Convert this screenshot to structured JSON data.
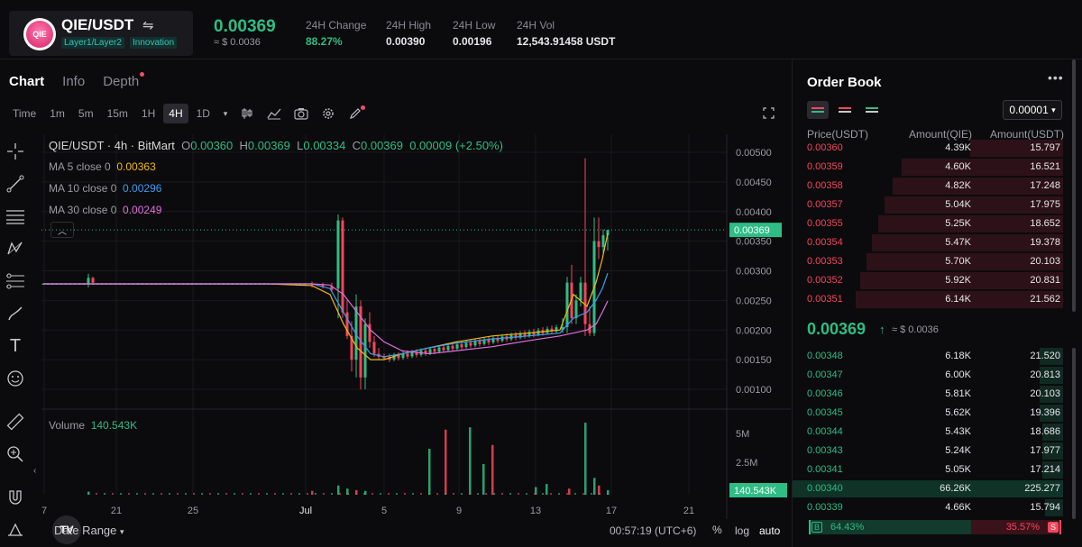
{
  "header": {
    "pair": "QIE/USDT",
    "logo_text": "QIE",
    "tags": [
      "Layer1/Layer2",
      "Innovation"
    ],
    "last_price": "0.00369",
    "last_price_usd": "≈ $ 0.0036",
    "stats": [
      {
        "label": "24H Change",
        "value": "88.27%"
      },
      {
        "label": "24H High",
        "value": "0.00390"
      },
      {
        "label": "24H Low",
        "value": "0.00196"
      },
      {
        "label": "24H Vol",
        "value": "12,543.91458 USDT"
      }
    ]
  },
  "chart_panel": {
    "tabs": [
      "Chart",
      "Info",
      "Depth"
    ],
    "intervals": [
      "Time",
      "1m",
      "5m",
      "15m",
      "1H",
      "4H",
      "1D"
    ],
    "active_interval": "4H",
    "legend": {
      "title": "QIE/USDT · 4h · BitMart",
      "o_label": "O",
      "o": "0.00360",
      "h_label": "H",
      "h": "0.00369",
      "l_label": "L",
      "l": "0.00334",
      "c_label": "C",
      "c": "0.00369",
      "change": "0.00009 (+2.50%)",
      "ma5_label": "MA 5 close 0",
      "ma5": "0.00363",
      "ma10_label": "MA 10 close 0",
      "ma10": "0.00296",
      "ma30_label": "MA 30 close 0",
      "ma30": "0.00249",
      "volume_label": "Volume",
      "volume": "140.543K"
    },
    "bottom": {
      "date_range": "Date Range",
      "clock": "00:57:19 (UTC+6)",
      "pct": "%",
      "log": "log",
      "auto": "auto"
    }
  },
  "chart_data": {
    "type": "line",
    "title": "QIE/USDT · 4h · BitMart",
    "x_tick_labels": [
      "7",
      "21",
      "25",
      "Jul",
      "5",
      "9",
      "13",
      "17",
      "21"
    ],
    "y_tick_labels": [
      "0.00500",
      "0.00450",
      "0.00400",
      "0.00350",
      "0.00300",
      "0.00250",
      "0.00200",
      "0.00150",
      "0.00100"
    ],
    "ylim": [
      0.001,
      0.005
    ],
    "volume_tick_labels": [
      "5M",
      "2.5M"
    ],
    "last_price_label": "0.00369",
    "last_volume_label": "140.543K",
    "colors": {
      "up": "#2ebd85",
      "down": "#f6465d",
      "ma5": "#f0b90b",
      "ma10": "#3d9cf0",
      "ma30": "#e26de0"
    },
    "series": [
      {
        "name": "MA 5 close 0",
        "values": [
          0.00278,
          0.00278,
          0.00278,
          0.00278,
          0.00278,
          0.00278,
          0.00275,
          0.0026,
          0.0021,
          0.0017,
          0.0015,
          0.0015,
          0.0016,
          0.0017,
          0.0018,
          0.0019,
          0.00195,
          0.002,
          0.0026,
          0.0024,
          0.0028,
          0.0032,
          0.00363
        ]
      },
      {
        "name": "MA 10 close 0",
        "values": [
          0.00278,
          0.00278,
          0.00278,
          0.00278,
          0.00278,
          0.00278,
          0.00278,
          0.0027,
          0.0023,
          0.0019,
          0.0016,
          0.00155,
          0.0016,
          0.0017,
          0.00178,
          0.00185,
          0.0019,
          0.00195,
          0.0022,
          0.0023,
          0.0025,
          0.0027,
          0.00296
        ]
      },
      {
        "name": "MA 30 close 0",
        "values": [
          0.00278,
          0.00278,
          0.00278,
          0.00278,
          0.00278,
          0.00278,
          0.00278,
          0.00276,
          0.0026,
          0.0023,
          0.002,
          0.0018,
          0.00165,
          0.0016,
          0.00165,
          0.00172,
          0.00182,
          0.0019,
          0.00195,
          0.002,
          0.0021,
          0.0023,
          0.00249
        ]
      }
    ]
  },
  "orderbook": {
    "title": "Order Book",
    "precision": "0.00001",
    "headers": [
      "Price(USDT)",
      "Amount(QIE)",
      "Amount(USDT)"
    ],
    "asks": [
      {
        "price": "0.00360",
        "amount": "4.39K",
        "total": "15.797",
        "depth": 0.45
      },
      {
        "price": "0.00359",
        "amount": "4.60K",
        "total": "16.521",
        "depth": 0.78
      },
      {
        "price": "0.00358",
        "amount": "4.82K",
        "total": "17.248",
        "depth": 0.82
      },
      {
        "price": "0.00357",
        "amount": "5.04K",
        "total": "17.975",
        "depth": 0.86
      },
      {
        "price": "0.00355",
        "amount": "5.25K",
        "total": "18.652",
        "depth": 0.89
      },
      {
        "price": "0.00354",
        "amount": "5.47K",
        "total": "19.378",
        "depth": 0.92
      },
      {
        "price": "0.00353",
        "amount": "5.70K",
        "total": "20.103",
        "depth": 0.95
      },
      {
        "price": "0.00352",
        "amount": "5.92K",
        "total": "20.831",
        "depth": 0.98
      },
      {
        "price": "0.00351",
        "amount": "6.14K",
        "total": "21.562",
        "depth": 1.0
      }
    ],
    "mid_price": "0.00369",
    "mid_usd": "≈ $ 0.0036",
    "bids": [
      {
        "price": "0.00348",
        "amount": "6.18K",
        "total": "21.520",
        "depth": 0.09
      },
      {
        "price": "0.00347",
        "amount": "6.00K",
        "total": "20.813",
        "depth": 0.09
      },
      {
        "price": "0.00346",
        "amount": "5.81K",
        "total": "20.103",
        "depth": 0.09
      },
      {
        "price": "0.00345",
        "amount": "5.62K",
        "total": "19.396",
        "depth": 0.09
      },
      {
        "price": "0.00344",
        "amount": "5.43K",
        "total": "18.686",
        "depth": 0.08
      },
      {
        "price": "0.00343",
        "amount": "5.24K",
        "total": "17.977",
        "depth": 0.08
      },
      {
        "price": "0.00341",
        "amount": "5.05K",
        "total": "17.214",
        "depth": 0.08
      },
      {
        "price": "0.00340",
        "amount": "66.26K",
        "total": "225.277",
        "depth": 1.0
      },
      {
        "price": "0.00339",
        "amount": "4.66K",
        "total": "15.794",
        "depth": 0.07
      }
    ],
    "buy_ratio_label": "B",
    "buy_ratio": "64.43%",
    "sell_ratio": "35.57%",
    "sell_ratio_label": "S",
    "buy_fraction": 0.6443
  }
}
